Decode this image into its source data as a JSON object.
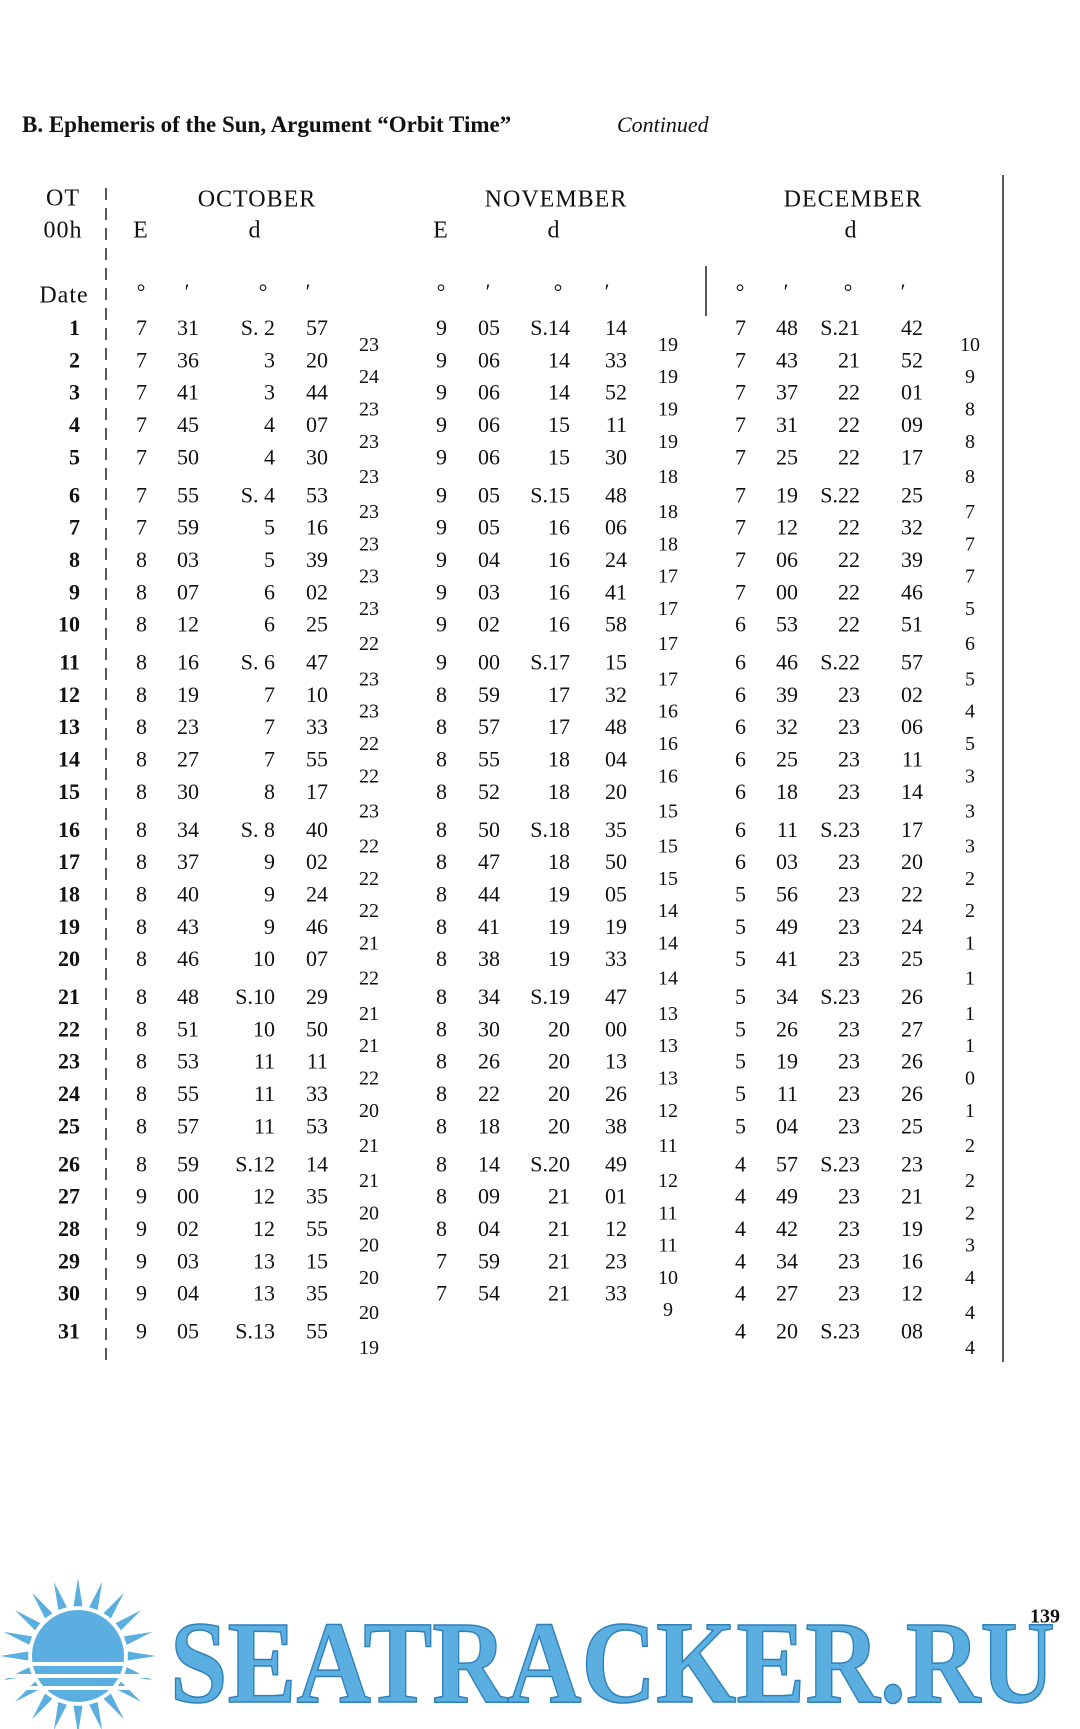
{
  "header": {
    "title": "B. Ephemeris of the Sun, Argument “Orbit Time”",
    "note": "Continued"
  },
  "table": {
    "ot_label": "OT",
    "epoch_label": "00h",
    "date_label": "Date",
    "dates": [
      "1",
      "2",
      "3",
      "4",
      "5",
      "6",
      "7",
      "8",
      "9",
      "10",
      "11",
      "12",
      "13",
      "14",
      "15",
      "16",
      "17",
      "18",
      "19",
      "20",
      "21",
      "22",
      "23",
      "24",
      "25",
      "26",
      "27",
      "28",
      "29",
      "30",
      "31"
    ],
    "months": [
      {
        "name": "OCTOBER",
        "e_label": "E",
        "d_label": "d",
        "units": [
          "°",
          "′",
          "°",
          "′"
        ],
        "rows": [
          [
            "7",
            "31",
            "S. 2",
            "57"
          ],
          [
            "7",
            "36",
            "3",
            "20"
          ],
          [
            "7",
            "41",
            "3",
            "44"
          ],
          [
            "7",
            "45",
            "4",
            "07"
          ],
          [
            "7",
            "50",
            "4",
            "30"
          ],
          [
            "7",
            "55",
            "S. 4",
            "53"
          ],
          [
            "7",
            "59",
            "5",
            "16"
          ],
          [
            "8",
            "03",
            "5",
            "39"
          ],
          [
            "8",
            "07",
            "6",
            "02"
          ],
          [
            "8",
            "12",
            "6",
            "25"
          ],
          [
            "8",
            "16",
            "S. 6",
            "47"
          ],
          [
            "8",
            "19",
            "7",
            "10"
          ],
          [
            "8",
            "23",
            "7",
            "33"
          ],
          [
            "8",
            "27",
            "7",
            "55"
          ],
          [
            "8",
            "30",
            "8",
            "17"
          ],
          [
            "8",
            "34",
            "S. 8",
            "40"
          ],
          [
            "8",
            "37",
            "9",
            "02"
          ],
          [
            "8",
            "40",
            "9",
            "24"
          ],
          [
            "8",
            "43",
            "9",
            "46"
          ],
          [
            "8",
            "46",
            "10",
            "07"
          ],
          [
            "8",
            "48",
            "S.10",
            "29"
          ],
          [
            "8",
            "51",
            "10",
            "50"
          ],
          [
            "8",
            "53",
            "11",
            "11"
          ],
          [
            "8",
            "55",
            "11",
            "33"
          ],
          [
            "8",
            "57",
            "11",
            "53"
          ],
          [
            "8",
            "59",
            "S.12",
            "14"
          ],
          [
            "9",
            "00",
            "12",
            "35"
          ],
          [
            "9",
            "02",
            "12",
            "55"
          ],
          [
            "9",
            "03",
            "13",
            "15"
          ],
          [
            "9",
            "04",
            "13",
            "35"
          ],
          [
            "9",
            "05",
            "S.13",
            "55"
          ]
        ],
        "differences": [
          "23",
          "24",
          "23",
          "23",
          "23",
          "23",
          "23",
          "23",
          "23",
          "22",
          "23",
          "23",
          "22",
          "22",
          "23",
          "22",
          "22",
          "22",
          "21",
          "22",
          "21",
          "21",
          "22",
          "20",
          "21",
          "21",
          "20",
          "20",
          "20",
          "20",
          "19"
        ]
      },
      {
        "name": "NOVEMBER",
        "e_label": "E",
        "d_label": "d",
        "units": [
          "°",
          "′",
          "°",
          "′"
        ],
        "rows": [
          [
            "9",
            "05",
            "S.14",
            "14"
          ],
          [
            "9",
            "06",
            "14",
            "33"
          ],
          [
            "9",
            "06",
            "14",
            "52"
          ],
          [
            "9",
            "06",
            "15",
            "11"
          ],
          [
            "9",
            "06",
            "15",
            "30"
          ],
          [
            "9",
            "05",
            "S.15",
            "48"
          ],
          [
            "9",
            "05",
            "16",
            "06"
          ],
          [
            "9",
            "04",
            "16",
            "24"
          ],
          [
            "9",
            "03",
            "16",
            "41"
          ],
          [
            "9",
            "02",
            "16",
            "58"
          ],
          [
            "9",
            "00",
            "S.17",
            "15"
          ],
          [
            "8",
            "59",
            "17",
            "32"
          ],
          [
            "8",
            "57",
            "17",
            "48"
          ],
          [
            "8",
            "55",
            "18",
            "04"
          ],
          [
            "8",
            "52",
            "18",
            "20"
          ],
          [
            "8",
            "50",
            "S.18",
            "35"
          ],
          [
            "8",
            "47",
            "18",
            "50"
          ],
          [
            "8",
            "44",
            "19",
            "05"
          ],
          [
            "8",
            "41",
            "19",
            "19"
          ],
          [
            "8",
            "38",
            "19",
            "33"
          ],
          [
            "8",
            "34",
            "S.19",
            "47"
          ],
          [
            "8",
            "30",
            "20",
            "00"
          ],
          [
            "8",
            "26",
            "20",
            "13"
          ],
          [
            "8",
            "22",
            "20",
            "26"
          ],
          [
            "8",
            "18",
            "20",
            "38"
          ],
          [
            "8",
            "14",
            "S.20",
            "49"
          ],
          [
            "8",
            "09",
            "21",
            "01"
          ],
          [
            "8",
            "04",
            "21",
            "12"
          ],
          [
            "7",
            "59",
            "21",
            "23"
          ],
          [
            "7",
            "54",
            "21",
            "33"
          ]
        ],
        "differences": [
          "19",
          "19",
          "19",
          "19",
          "18",
          "18",
          "18",
          "17",
          "17",
          "17",
          "17",
          "16",
          "16",
          "16",
          "15",
          "15",
          "15",
          "14",
          "14",
          "14",
          "13",
          "13",
          "13",
          "12",
          "11",
          "12",
          "11",
          "11",
          "10",
          "9"
        ]
      },
      {
        "name": "DECEMBER",
        "d_label": "d",
        "units": [
          "°",
          "′",
          "°",
          "′"
        ],
        "rows": [
          [
            "7",
            "48",
            "S.21",
            "42"
          ],
          [
            "7",
            "43",
            "21",
            "52"
          ],
          [
            "7",
            "37",
            "22",
            "01"
          ],
          [
            "7",
            "31",
            "22",
            "09"
          ],
          [
            "7",
            "25",
            "22",
            "17"
          ],
          [
            "7",
            "19",
            "S.22",
            "25"
          ],
          [
            "7",
            "12",
            "22",
            "32"
          ],
          [
            "7",
            "06",
            "22",
            "39"
          ],
          [
            "7",
            "00",
            "22",
            "46"
          ],
          [
            "6",
            "53",
            "22",
            "51"
          ],
          [
            "6",
            "46",
            "S.22",
            "57"
          ],
          [
            "6",
            "39",
            "23",
            "02"
          ],
          [
            "6",
            "32",
            "23",
            "06"
          ],
          [
            "6",
            "25",
            "23",
            "11"
          ],
          [
            "6",
            "18",
            "23",
            "14"
          ],
          [
            "6",
            "11",
            "S.23",
            "17"
          ],
          [
            "6",
            "03",
            "23",
            "20"
          ],
          [
            "5",
            "56",
            "23",
            "22"
          ],
          [
            "5",
            "49",
            "23",
            "24"
          ],
          [
            "5",
            "41",
            "23",
            "25"
          ],
          [
            "5",
            "34",
            "S.23",
            "26"
          ],
          [
            "5",
            "26",
            "23",
            "27"
          ],
          [
            "5",
            "19",
            "23",
            "26"
          ],
          [
            "5",
            "11",
            "23",
            "26"
          ],
          [
            "5",
            "04",
            "23",
            "25"
          ],
          [
            "4",
            "57",
            "S.23",
            "23"
          ],
          [
            "4",
            "49",
            "23",
            "21"
          ],
          [
            "4",
            "42",
            "23",
            "19"
          ],
          [
            "4",
            "34",
            "23",
            "16"
          ],
          [
            "4",
            "27",
            "23",
            "12"
          ],
          [
            "4",
            "20",
            "S.23",
            "08"
          ]
        ],
        "differences": [
          "10",
          "9",
          "8",
          "8",
          "8",
          "7",
          "7",
          "7",
          "5",
          "6",
          "5",
          "4",
          "5",
          "3",
          "3",
          "3",
          "2",
          "2",
          "1",
          "1",
          "1",
          "1",
          "0",
          "1",
          "2",
          "2",
          "2",
          "3",
          "4",
          "4",
          "4"
        ]
      }
    ]
  },
  "footer": {
    "page_number": "139",
    "watermark": "SEATRACKER.RU"
  }
}
